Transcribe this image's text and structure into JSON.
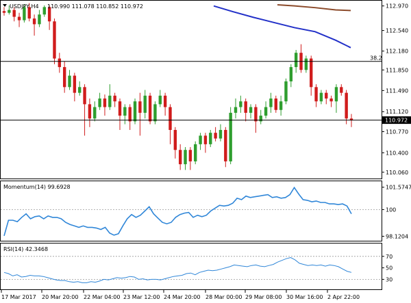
{
  "colors": {
    "up": "#2e9e2e",
    "down": "#d01c1c",
    "wick": "#000000",
    "sma_blue": "#2230c8",
    "sma_brown": "#8b4a2a",
    "momentum": "#2f86d8",
    "rsi": "#2f86d8",
    "grid": "#bbbbbb",
    "price_box": "#000000"
  },
  "header": {
    "symbol": "USDJPY,H4",
    "ohlc": "110.990 111.078 110.852 110.972",
    "momentum": "Momentum(14) 99.6928",
    "rsi": "RSI(14) 42.3468"
  },
  "chart_data": [
    {
      "type": "candlestick",
      "title": "USDJPY,H4",
      "ylim": [
        109.95,
        113.05
      ],
      "ticks": [
        "112.970",
        "112.540",
        "112.180",
        "111.850",
        "111.490",
        "111.120",
        "110.770",
        "110.400",
        "110.060"
      ],
      "tick_values": [
        112.97,
        112.54,
        112.18,
        111.85,
        111.49,
        111.12,
        110.77,
        110.4,
        110.06
      ],
      "current_price": "110.972",
      "current_value": 110.972,
      "fib_label": "38.2",
      "fib_value": 112.0,
      "candles": [
        [
          112.88,
          112.85,
          112.95,
          112.8
        ],
        [
          112.85,
          112.9,
          112.98,
          112.82
        ],
        [
          112.9,
          112.78,
          112.95,
          112.7
        ],
        [
          112.78,
          112.72,
          112.85,
          112.6
        ],
        [
          112.72,
          112.95,
          113.0,
          112.68
        ],
        [
          112.95,
          112.75,
          113.02,
          112.7
        ],
        [
          112.75,
          112.65,
          112.82,
          112.45
        ],
        [
          112.65,
          112.82,
          112.9,
          112.6
        ],
        [
          112.82,
          112.95,
          112.98,
          112.78
        ],
        [
          112.95,
          112.7,
          112.98,
          112.55
        ],
        [
          112.7,
          112.05,
          112.75,
          111.95
        ],
        [
          112.05,
          111.9,
          112.15,
          111.8
        ],
        [
          111.9,
          111.55,
          112.0,
          111.45
        ],
        [
          111.55,
          111.75,
          111.85,
          111.5
        ],
        [
          111.75,
          111.45,
          111.8,
          111.3
        ],
        [
          111.45,
          111.55,
          111.65,
          111.4
        ],
        [
          111.55,
          111.25,
          111.6,
          110.7
        ],
        [
          111.25,
          111.0,
          111.35,
          110.85
        ],
        [
          111.0,
          111.2,
          111.3,
          110.95
        ],
        [
          111.2,
          111.35,
          111.45,
          111.15
        ],
        [
          111.35,
          111.2,
          111.42,
          111.05
        ],
        [
          111.2,
          111.4,
          111.6,
          111.15
        ],
        [
          111.4,
          111.3,
          111.45,
          111.2
        ],
        [
          111.3,
          111.05,
          111.35,
          110.8
        ],
        [
          111.05,
          111.2,
          111.25,
          110.9
        ],
        [
          111.2,
          110.95,
          111.25,
          110.8
        ],
        [
          110.95,
          111.3,
          111.35,
          110.9
        ],
        [
          111.3,
          111.1,
          111.45,
          110.7
        ],
        [
          111.1,
          111.4,
          111.5,
          111.0
        ],
        [
          111.4,
          110.95,
          111.45,
          110.9
        ],
        [
          110.95,
          111.25,
          111.3,
          110.9
        ],
        [
          111.25,
          111.4,
          111.5,
          111.2
        ],
        [
          111.4,
          111.2,
          111.45,
          111.05
        ],
        [
          111.2,
          110.8,
          111.25,
          110.55
        ],
        [
          110.8,
          110.45,
          110.85,
          110.3
        ],
        [
          110.45,
          110.2,
          110.55,
          110.1
        ],
        [
          110.2,
          110.45,
          110.5,
          110.1
        ],
        [
          110.45,
          110.25,
          110.5,
          110.1
        ],
        [
          110.25,
          110.55,
          110.6,
          110.2
        ],
        [
          110.55,
          110.7,
          110.75,
          110.45
        ],
        [
          110.7,
          110.55,
          110.75,
          110.4
        ],
        [
          110.55,
          110.75,
          110.8,
          110.5
        ],
        [
          110.75,
          110.65,
          110.85,
          110.6
        ],
        [
          110.65,
          110.8,
          110.9,
          110.6
        ],
        [
          110.8,
          110.25,
          110.85,
          110.15
        ],
        [
          110.25,
          111.1,
          111.2,
          110.2
        ],
        [
          111.1,
          111.2,
          111.35,
          111.0
        ],
        [
          111.2,
          111.3,
          111.4,
          111.1
        ],
        [
          111.3,
          111.1,
          111.35,
          110.95
        ],
        [
          111.1,
          111.2,
          111.25,
          111.0
        ],
        [
          111.2,
          110.95,
          111.25,
          110.75
        ],
        [
          110.95,
          111.05,
          111.15,
          110.9
        ],
        [
          111.05,
          111.2,
          111.3,
          111.0
        ],
        [
          111.2,
          111.35,
          111.45,
          111.1
        ],
        [
          111.35,
          111.15,
          111.4,
          111.1
        ],
        [
          111.15,
          111.3,
          111.4,
          111.05
        ],
        [
          111.3,
          111.65,
          111.7,
          111.25
        ],
        [
          111.65,
          111.9,
          111.95,
          111.55
        ],
        [
          111.9,
          112.15,
          112.2,
          111.8
        ],
        [
          112.15,
          111.85,
          112.3,
          111.8
        ],
        [
          111.85,
          112.05,
          112.1,
          111.8
        ],
        [
          112.05,
          111.55,
          112.1,
          111.4
        ],
        [
          111.55,
          111.3,
          111.6,
          111.2
        ],
        [
          111.3,
          111.45,
          111.5,
          111.25
        ],
        [
          111.45,
          111.35,
          111.5,
          111.25
        ],
        [
          111.35,
          111.3,
          111.4,
          111.2
        ],
        [
          111.3,
          111.55,
          111.6,
          111.1
        ],
        [
          111.55,
          111.45,
          111.6,
          111.4
        ],
        [
          111.45,
          111.0,
          111.5,
          110.9
        ],
        [
          111.0,
          110.97,
          111.08,
          110.85
        ]
      ],
      "sma_blue": [
        [
          312,
          112.97
        ],
        [
          340,
          112.87
        ],
        [
          370,
          112.77
        ],
        [
          400,
          112.68
        ],
        [
          430,
          112.59
        ],
        [
          460,
          112.52
        ],
        [
          490,
          112.37
        ],
        [
          512,
          112.24
        ]
      ],
      "sma_brown": [
        [
          405,
          112.99
        ],
        [
          430,
          112.97
        ],
        [
          460,
          112.94
        ],
        [
          490,
          112.9
        ],
        [
          512,
          112.89
        ]
      ]
    },
    {
      "type": "line",
      "title": "Momentum(14) 99.6928",
      "ylim": [
        97.9,
        101.85
      ],
      "ticks": [
        "101.5747",
        "100",
        "98.1204"
      ],
      "tick_values": [
        101.5747,
        100,
        98.1204
      ],
      "reference": 100,
      "values": [
        98.15,
        99.25,
        99.25,
        99.15,
        99.45,
        99.7,
        99.35,
        99.5,
        99.55,
        99.35,
        99.55,
        99.45,
        99.45,
        99.35,
        99.1,
        98.95,
        98.85,
        98.75,
        98.85,
        98.75,
        98.75,
        98.7,
        98.6,
        98.75,
        98.35,
        98.2,
        98.3,
        98.85,
        99.35,
        99.65,
        99.45,
        99.6,
        99.9,
        100.2,
        99.7,
        99.4,
        99.1,
        99.0,
        99.1,
        99.45,
        99.65,
        99.75,
        99.8,
        99.45,
        99.6,
        99.5,
        99.6,
        99.9,
        100.1,
        100.3,
        100.25,
        100.3,
        100.45,
        100.8,
        100.7,
        100.95,
        100.85,
        100.9,
        100.95,
        101.0,
        101.05,
        100.85,
        100.9,
        100.8,
        100.85,
        101.05,
        101.55,
        101.1,
        100.7,
        100.65,
        100.55,
        100.6,
        100.5,
        100.5,
        100.4,
        100.4,
        100.35,
        100.4,
        100.25,
        99.7
      ]
    },
    {
      "type": "line",
      "title": "RSI(14) 42.3468",
      "ylim": [
        15,
        90
      ],
      "ticks": [
        "70",
        "50",
        "30"
      ],
      "tick_values": [
        70,
        50,
        30
      ],
      "values": [
        42,
        40,
        36,
        38,
        34,
        35,
        37,
        36,
        36,
        35,
        33,
        31,
        29,
        28,
        28,
        26,
        25,
        26,
        24,
        24,
        26,
        25,
        27,
        30,
        29,
        31,
        33,
        32,
        33,
        35,
        34,
        30,
        31,
        29,
        30,
        30,
        29,
        31,
        33,
        35,
        36,
        37,
        40,
        41,
        38,
        42,
        44,
        46,
        45,
        46,
        48,
        50,
        52,
        55,
        54,
        53,
        52,
        54,
        55,
        53,
        52,
        54,
        56,
        60,
        63,
        66,
        68,
        64,
        58,
        56,
        54,
        55,
        54,
        55,
        53,
        55,
        54,
        52,
        48,
        44,
        42
      ]
    }
  ],
  "x_axis": [
    "17 Mar 2017",
    "20 Mar 20:00",
    "22 Mar 04:00",
    "23 Mar 12:00",
    "24 Mar 20:00",
    "28 Mar 00:00",
    "29 Mar 08:00",
    "30 Mar 16:00",
    "2 Apr 22:00"
  ]
}
